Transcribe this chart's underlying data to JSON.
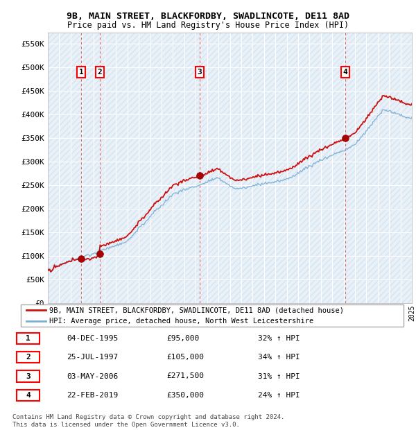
{
  "title1": "9B, MAIN STREET, BLACKFORDBY, SWADLINCOTE, DE11 8AD",
  "title2": "Price paid vs. HM Land Registry's House Price Index (HPI)",
  "xlim": [
    1993,
    2025
  ],
  "ylim": [
    0,
    575000
  ],
  "yticks": [
    0,
    50000,
    100000,
    150000,
    200000,
    250000,
    300000,
    350000,
    400000,
    450000,
    500000,
    550000
  ],
  "ytick_labels": [
    "£0",
    "£50K",
    "£100K",
    "£150K",
    "£200K",
    "£250K",
    "£300K",
    "£350K",
    "£400K",
    "£450K",
    "£500K",
    "£550K"
  ],
  "sale_dates_decimal": [
    1995.92,
    1997.57,
    2006.34,
    2019.14
  ],
  "sale_prices": [
    95000,
    105000,
    271500,
    350000
  ],
  "sale_labels": [
    "1",
    "2",
    "3",
    "4"
  ],
  "hpi_color": "#7aafd4",
  "price_color": "#cc1111",
  "vline_color": "#dd4444",
  "legend_label_price": "9B, MAIN STREET, BLACKFORDBY, SWADLINCOTE, DE11 8AD (detached house)",
  "legend_label_hpi": "HPI: Average price, detached house, North West Leicestershire",
  "table_data": [
    {
      "label": "1",
      "date": "04-DEC-1995",
      "price": "£95,000",
      "change": "32% ↑ HPI"
    },
    {
      "label": "2",
      "date": "25-JUL-1997",
      "price": "£105,000",
      "change": "34% ↑ HPI"
    },
    {
      "label": "3",
      "date": "03-MAY-2006",
      "price": "£271,500",
      "change": "31% ↑ HPI"
    },
    {
      "label": "4",
      "date": "22-FEB-2019",
      "price": "£350,000",
      "change": "24% ↑ HPI"
    }
  ],
  "footer": "Contains HM Land Registry data © Crown copyright and database right 2024.\nThis data is licensed under the Open Government Licence v3.0.",
  "chart_bg": "#e8f0f8",
  "hatch_bg": "#d8e8f0",
  "grid_color": "#ffffff"
}
